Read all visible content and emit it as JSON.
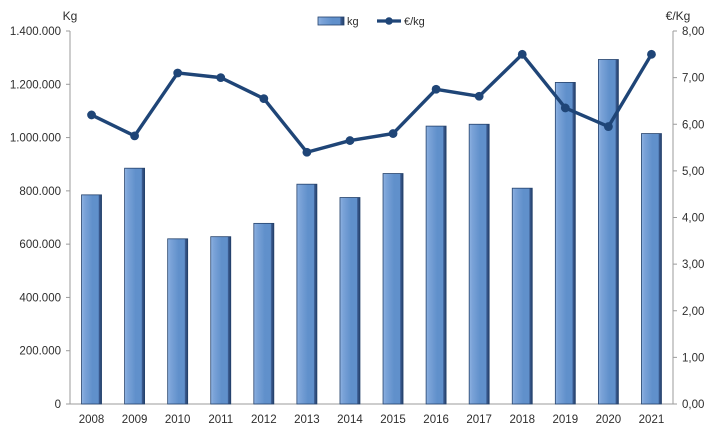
{
  "figure": {
    "background": "#ffffff",
    "colors": {
      "bar_fill_main": "#6090CB",
      "bar_fill_light": "#8FB3E2",
      "bar_fill_mid": "#7BA3D8",
      "bar_edge_dark": "#24416B",
      "bar_shade": "#3A5A8F",
      "line": "#1F4577",
      "axis_line": "#9B9B9B",
      "tick_text": "#2E2E2E"
    },
    "legend": {
      "items": [
        {
          "label": "kg",
          "swatch": "bar"
        },
        {
          "label": "€/kg",
          "swatch": "line-marker"
        }
      ],
      "position": "top-center"
    }
  },
  "chart_data": {
    "type": "bar+line combo",
    "title": "",
    "categories": [
      "2008",
      "2009",
      "2010",
      "2011",
      "2012",
      "2013",
      "2014",
      "2015",
      "2016",
      "2017",
      "2018",
      "2019",
      "2020",
      "2021"
    ],
    "series": [
      {
        "name": "kg",
        "type": "bar",
        "axis": "left",
        "values": [
          785000,
          885000,
          620000,
          628000,
          678000,
          825000,
          775000,
          865000,
          1043000,
          1050000,
          810000,
          1207000,
          1293000,
          1015000
        ]
      },
      {
        "name": "€/kg",
        "type": "line",
        "axis": "right",
        "values": [
          6.2,
          5.75,
          7.1,
          7.0,
          6.55,
          5.4,
          5.65,
          5.8,
          6.75,
          6.6,
          7.5,
          6.35,
          5.95,
          7.5
        ]
      }
    ],
    "left_axis": {
      "label": "Kg",
      "min": 0,
      "max": 1400000,
      "step": 200000,
      "tick_labels": [
        "0",
        "200.000",
        "400.000",
        "600.000",
        "800.000",
        "1.000.000",
        "1.200.000",
        "1.400.000"
      ]
    },
    "right_axis": {
      "label": "€/Kg",
      "min": 0,
      "max": 8,
      "step": 1,
      "tick_labels": [
        "0,00",
        "1,00",
        "2,00",
        "3,00",
        "4,00",
        "5,00",
        "6,00",
        "7,00",
        "8,00"
      ]
    },
    "x_axis": {
      "label": ""
    },
    "grid": false,
    "legend_position": "top-center"
  }
}
